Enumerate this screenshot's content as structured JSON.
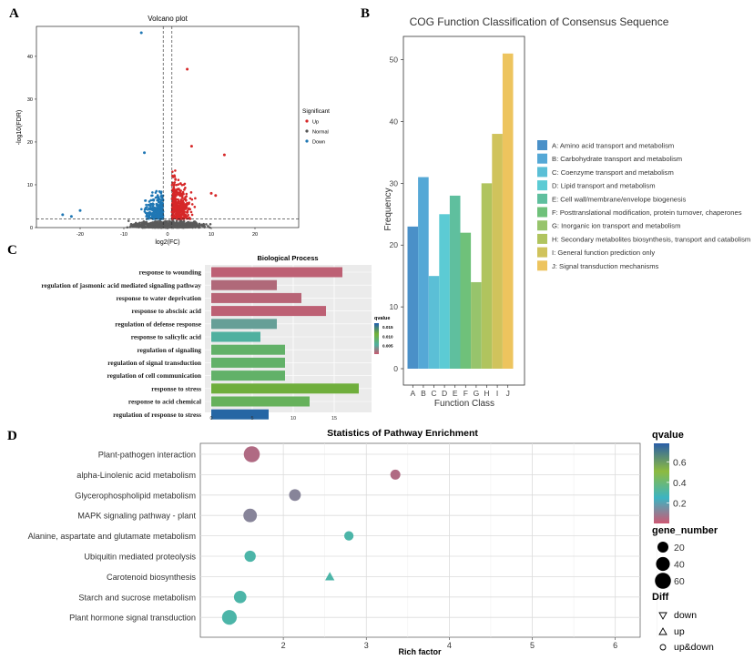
{
  "panels": {
    "A": {
      "letter": "A",
      "title": "Volcano plot",
      "xlabel": "log2(FC)",
      "ylabel": "-log10(FDR)",
      "legend_title": "Significant",
      "legend_items": [
        {
          "label": "Up",
          "color": "#d62728"
        },
        {
          "label": "Normal",
          "color": "#555555"
        },
        {
          "label": "Down",
          "color": "#1f77b4"
        }
      ]
    },
    "B": {
      "letter": "B"
    },
    "C": {
      "letter": "C",
      "legend_title": "qvalue"
    },
    "D": {
      "letter": "D"
    }
  },
  "chart_data": [
    {
      "id": "volcano",
      "type": "scatter",
      "title": "Volcano plot",
      "xlabel": "log2(FC)",
      "ylabel": "-log10(FDR)",
      "xlim": [
        -30,
        30
      ],
      "ylim": [
        0,
        47
      ],
      "xticks": [
        -20,
        -10,
        0,
        10,
        20
      ],
      "yticks": [
        0,
        10,
        20,
        30,
        40
      ],
      "vlines": [
        -1,
        1
      ],
      "hline": 2,
      "highlight_points": [
        {
          "x": -6,
          "y": 45.5,
          "group": "Down"
        },
        {
          "x": 4.5,
          "y": 37,
          "group": "Up"
        },
        {
          "x": -5.3,
          "y": 17.5,
          "group": "Down"
        },
        {
          "x": 13,
          "y": 17,
          "group": "Up"
        },
        {
          "x": -20,
          "y": 4,
          "group": "Down"
        },
        {
          "x": -24,
          "y": 3,
          "group": "Down"
        },
        {
          "x": -22,
          "y": 2.6,
          "group": "Down"
        },
        {
          "x": 10,
          "y": 8,
          "group": "Up"
        },
        {
          "x": 11,
          "y": 7.5,
          "group": "Up"
        },
        {
          "x": 5.5,
          "y": 19,
          "group": "Up"
        }
      ]
    },
    {
      "id": "cog",
      "type": "bar",
      "title": "COG Function Classification of Consensus Sequence",
      "xlabel": "Function Class",
      "ylabel": "Frequency",
      "ylim": [
        0,
        53
      ],
      "yticks": [
        0,
        10,
        20,
        30,
        40,
        50
      ],
      "categories": [
        "A",
        "B",
        "C",
        "D",
        "E",
        "F",
        "G",
        "H",
        "I",
        "J"
      ],
      "values": [
        23,
        31,
        15,
        25,
        28,
        22,
        14,
        30,
        38,
        51
      ],
      "colors": [
        "#4a90c8",
        "#55a8d6",
        "#5bbfd6",
        "#5ccbd4",
        "#5fbf9e",
        "#6fc17a",
        "#97c46c",
        "#b0c45e",
        "#d0c35c",
        "#edc45e"
      ],
      "legend": [
        "A: Amino acid transport and metabolism",
        "B: Carbohydrate transport and metabolism",
        "C: Coenzyme transport and metabolism",
        "D: Lipid transport and metabolism",
        "E: Cell wall/membrane/envelope biogenesis",
        "F: Posttranslational modification, protein turnover, chaperones",
        "G: Inorganic ion transport and metabolism",
        "H: Secondary metabolites biosynthesis, transport and catabolism",
        "I:  General function prediction only",
        "J:  Signal transduction mechanisms"
      ]
    },
    {
      "id": "bio-process",
      "type": "bar",
      "orientation": "horizontal",
      "title": "Biological Process",
      "xlim": [
        0,
        19
      ],
      "xticks": [
        0,
        5,
        10,
        15
      ],
      "categories": [
        "response to wounding",
        "regulation of jasmonic acid mediated signaling pathway",
        "response to water deprivation",
        "response to abscisic acid",
        "regulation of defense response",
        "response to salicylic acid",
        "regulation of signaling",
        "regulation of signal transduction",
        "regulation of cell communication",
        "response to stress",
        "response to acid chemical",
        "regulation of response to stress"
      ],
      "values": [
        16,
        8,
        11,
        14,
        8,
        6,
        9,
        9,
        9,
        18,
        12,
        7
      ],
      "qvalues": [
        0.001,
        0.0015,
        0.0012,
        0.001,
        0.0045,
        0.0055,
        0.0085,
        0.0085,
        0.0085,
        0.0115,
        0.0092,
        0.0165
      ],
      "legend_title": "qvalue",
      "legend_ticks": [
        "0.015",
        "0.010",
        "0.005"
      ],
      "legend_tick_values": [
        0.015,
        0.01,
        0.005
      ],
      "qrange": [
        0.0005,
        0.017
      ]
    },
    {
      "id": "pathway",
      "type": "scatter",
      "title": "Statistics of Pathway Enrichment",
      "xlabel": "Rich factor",
      "xlim": [
        1.0,
        6.3
      ],
      "xticks": [
        2,
        3,
        4,
        5,
        6
      ],
      "categories": [
        "Plant-pathogen interaction",
        "alpha-Linolenic acid metabolism",
        "Glycerophospholipid metabolism",
        "MAPK signaling pathway - plant",
        "Alanine, aspartate and glutamate metabolism",
        "Ubiquitin mediated proteolysis",
        "Carotenoid biosynthesis",
        "Starch and sucrose metabolism",
        "Plant hormone signal transduction"
      ],
      "points": [
        {
          "x": 1.62,
          "gene_number": 60,
          "qvalue": 0.05,
          "diff": "up&down"
        },
        {
          "x": 3.35,
          "gene_number": 15,
          "qvalue": 0.05,
          "diff": "up&down"
        },
        {
          "x": 2.14,
          "gene_number": 25,
          "qvalue": 0.12,
          "diff": "up&down"
        },
        {
          "x": 1.6,
          "gene_number": 38,
          "qvalue": 0.12,
          "diff": "up&down"
        },
        {
          "x": 2.79,
          "gene_number": 12,
          "qvalue": 0.3,
          "diff": "up&down"
        },
        {
          "x": 1.6,
          "gene_number": 22,
          "qvalue": 0.3,
          "diff": "up&down"
        },
        {
          "x": 2.56,
          "gene_number": 12,
          "qvalue": 0.3,
          "diff": "up"
        },
        {
          "x": 1.48,
          "gene_number": 30,
          "qvalue": 0.3,
          "diff": "up&down"
        },
        {
          "x": 1.35,
          "gene_number": 48,
          "qvalue": 0.3,
          "diff": "up&down"
        }
      ],
      "legend_qvalue_title": "qvalue",
      "legend_qvalue_ticks": [
        "0.6",
        "0.4",
        "0.2"
      ],
      "legend_qvalue_values": [
        0.6,
        0.4,
        0.2
      ],
      "qrange": [
        0.0,
        0.78
      ],
      "legend_size_title": "gene_number",
      "legend_size_labels": [
        "20",
        "40",
        "60"
      ],
      "legend_size_values": [
        20,
        40,
        60
      ],
      "legend_diff_title": "Diff",
      "legend_diff_labels": [
        "down",
        "up",
        "up&down"
      ]
    }
  ]
}
